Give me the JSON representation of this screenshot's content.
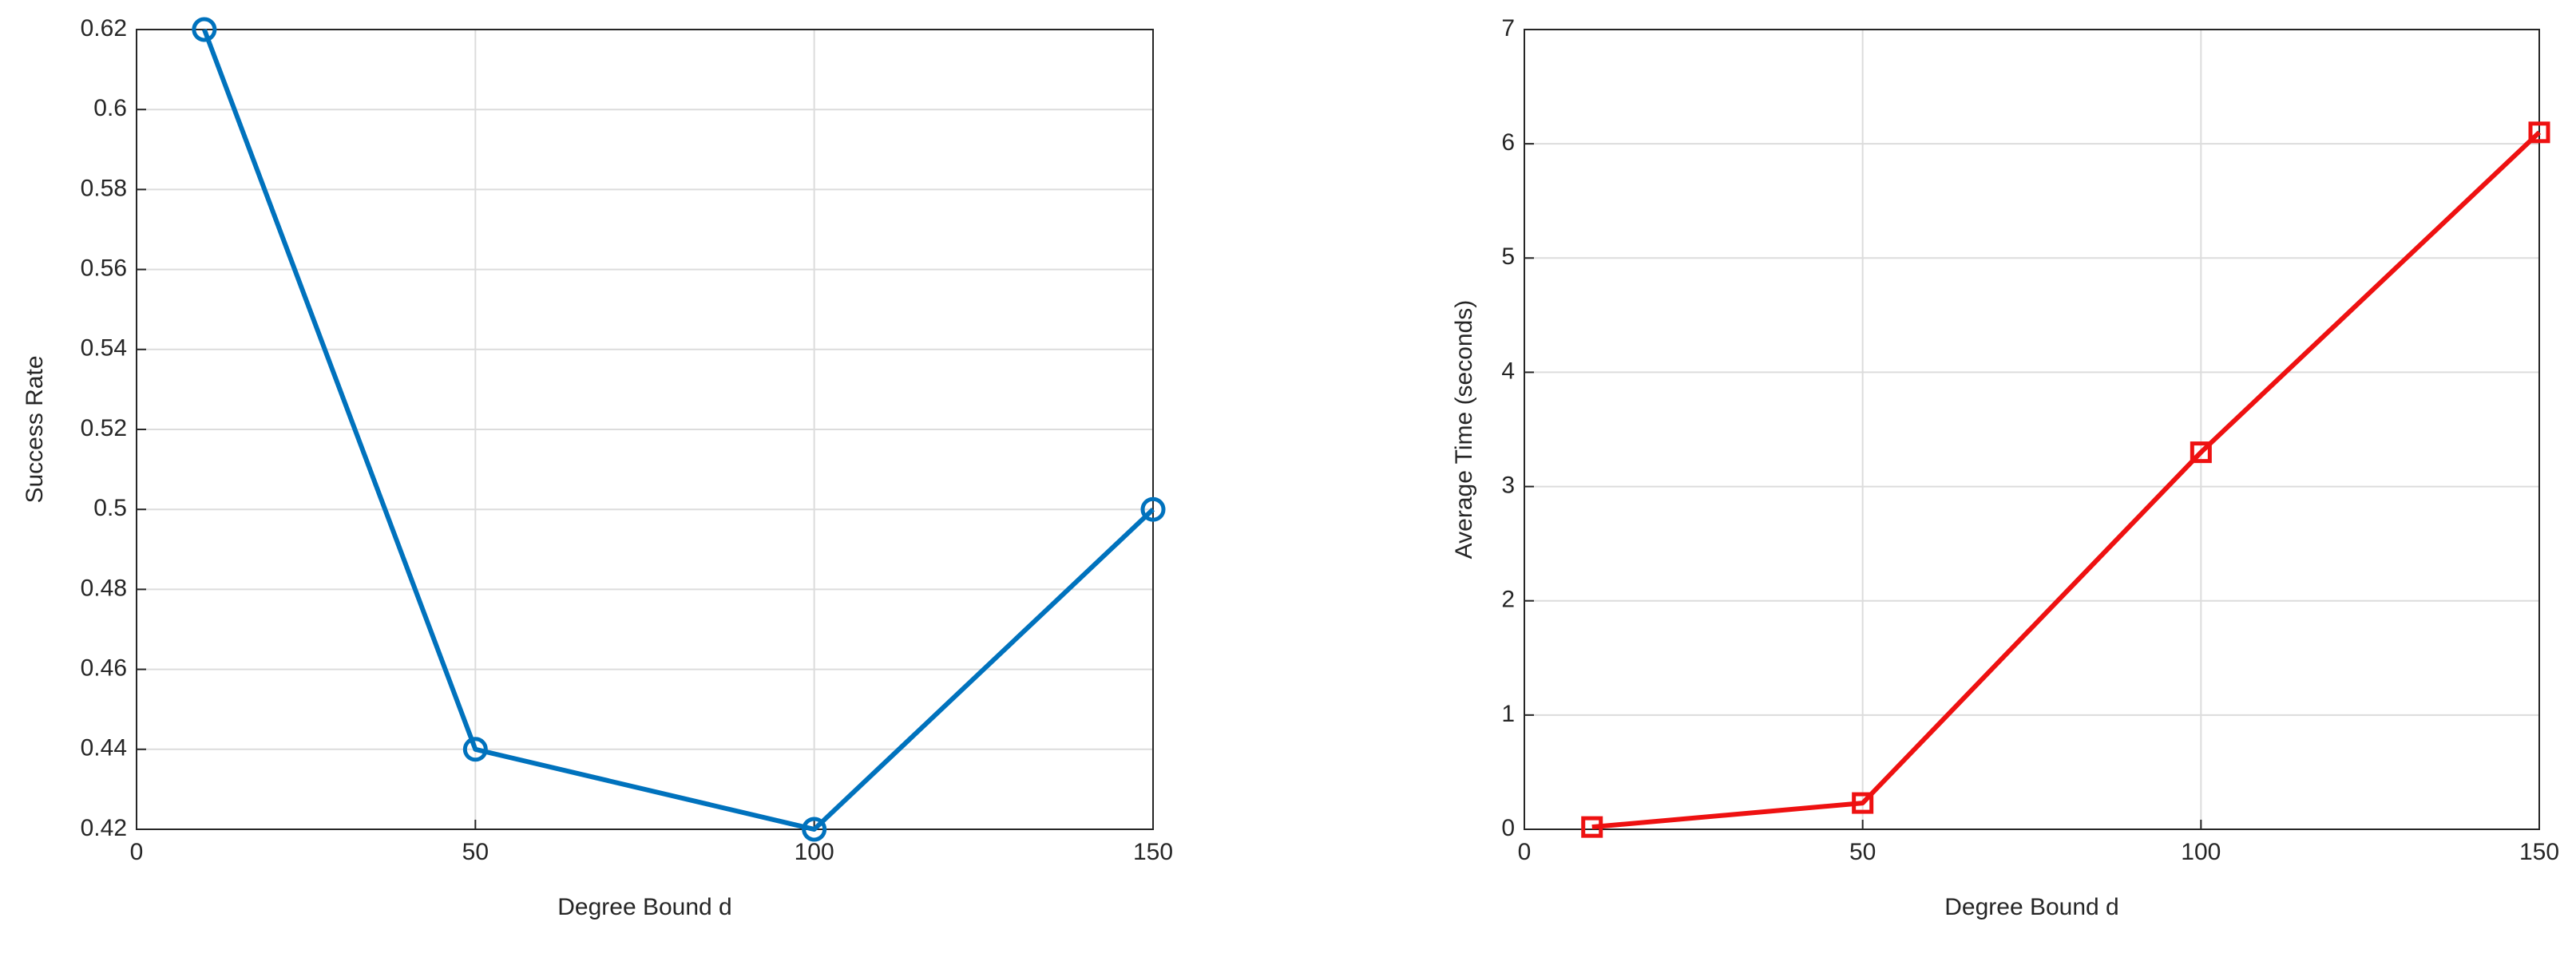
{
  "chart_data": [
    {
      "type": "line",
      "x": [
        10,
        50,
        100,
        150
      ],
      "values": [
        0.62,
        0.44,
        0.42,
        0.5
      ],
      "color": "#0072bd",
      "marker": "circle",
      "xlabel": "Degree Bound d",
      "ylabel": "Success Rate",
      "xlim": [
        0,
        150
      ],
      "xticks": [
        0,
        50,
        100,
        150
      ],
      "ylim": [
        0.42,
        0.62
      ],
      "yticks": [
        0.42,
        0.44,
        0.46,
        0.48,
        0.5,
        0.52,
        0.54,
        0.56,
        0.58,
        0.6,
        0.62
      ],
      "grid": true
    },
    {
      "type": "line",
      "x": [
        10,
        50,
        100,
        150
      ],
      "values": [
        0.02,
        0.23,
        3.3,
        6.1
      ],
      "color": "#ee1111",
      "marker": "square",
      "xlabel": "Degree Bound d",
      "ylabel": "Average Time (seconds)",
      "xlim": [
        0,
        150
      ],
      "xticks": [
        0,
        50,
        100,
        150
      ],
      "ylim": [
        0,
        7
      ],
      "yticks": [
        0,
        1,
        2,
        3,
        4,
        5,
        6,
        7
      ],
      "grid": true
    }
  ]
}
